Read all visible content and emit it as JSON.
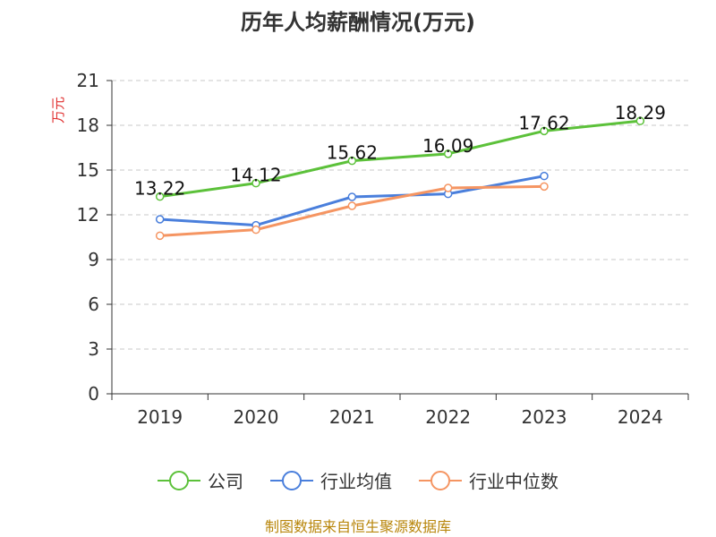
{
  "chart_data": {
    "type": "line",
    "title": "历年人均薪酬情况(万元)",
    "ylabel": "万元",
    "categories": [
      "2019",
      "2020",
      "2021",
      "2022",
      "2023",
      "2024"
    ],
    "ylim": [
      0,
      21
    ],
    "yticks": [
      0,
      3,
      6,
      9,
      12,
      15,
      18,
      21
    ],
    "grid": true,
    "legend_position": "bottom",
    "series": [
      {
        "name": "公司",
        "color": "#5cc13a",
        "values": [
          13.22,
          14.12,
          15.62,
          16.09,
          17.62,
          18.29
        ],
        "labels": [
          "13.22",
          "14.12",
          "15.62",
          "16.09",
          "17.62",
          "18.29"
        ]
      },
      {
        "name": "行业均值",
        "color": "#4a7fdc",
        "values": [
          11.7,
          11.3,
          13.2,
          13.4,
          14.6,
          null
        ]
      },
      {
        "name": "行业中位数",
        "color": "#f59562",
        "values": [
          10.6,
          11.0,
          12.6,
          13.8,
          13.9,
          null
        ]
      }
    ],
    "ylabel_color": "#e03030"
  },
  "source": {
    "text": "制图数据来自恒生聚源数据库",
    "color": "#b8860b"
  }
}
